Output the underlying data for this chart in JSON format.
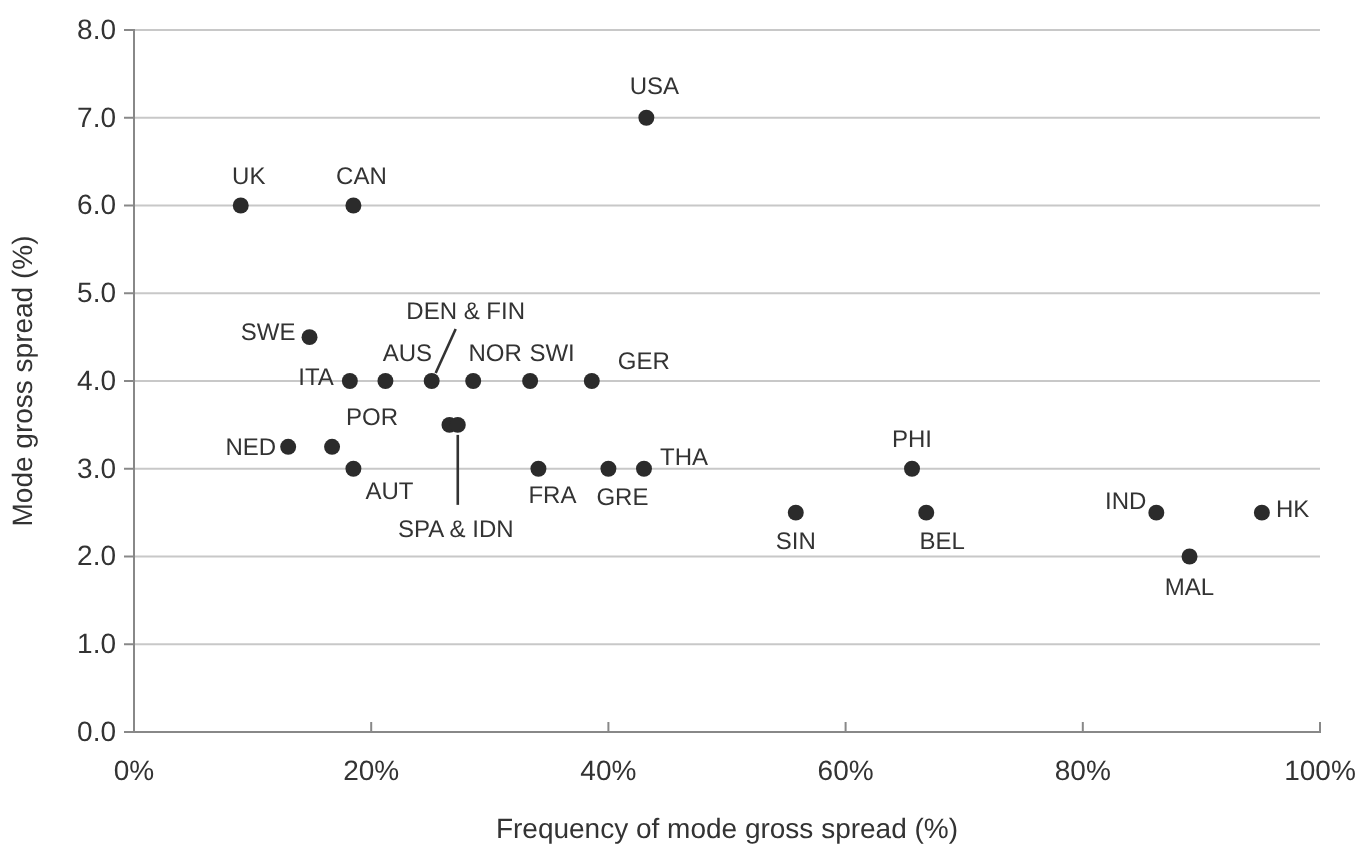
{
  "chart_data": {
    "type": "scatter",
    "xlabel": "Frequency of mode gross spread (%)",
    "ylabel": "Mode gross spread (%)",
    "x": [
      9,
      18.5,
      43.2,
      14.8,
      18.2,
      21.2,
      25.1,
      28.6,
      33.4,
      38.6,
      13,
      16.7,
      18.5,
      26.6,
      27.3,
      34.1,
      40,
      43,
      65.6,
      55.8,
      66.8,
      86.2,
      95.1,
      89
    ],
    "series": [
      {
        "color": "#2b2b2b",
        "values": [
          6,
          6,
          7,
          4.5,
          4,
          4,
          4,
          4,
          4,
          4,
          3.25,
          3.25,
          3,
          3.5,
          3.5,
          3,
          3,
          3,
          3,
          2.5,
          2.5,
          2.5,
          2.5,
          2
        ]
      }
    ],
    "xlim": [
      0,
      100
    ],
    "ylim": [
      0,
      8
    ],
    "xticks": [
      {
        "value": 0,
        "label": "0%"
      },
      {
        "value": 20,
        "label": "20%"
      },
      {
        "value": 40,
        "label": "40%"
      },
      {
        "value": 60,
        "label": "60%"
      },
      {
        "value": 80,
        "label": "80%"
      },
      {
        "value": 100,
        "label": "100%"
      }
    ],
    "yticks": [
      {
        "value": 0,
        "label": "0.0"
      },
      {
        "value": 1,
        "label": "1.0"
      },
      {
        "value": 2,
        "label": "2.0"
      },
      {
        "value": 3,
        "label": "3.0"
      },
      {
        "value": 4,
        "label": "4.0"
      },
      {
        "value": 5,
        "label": "5.0"
      },
      {
        "value": 6,
        "label": "6.0"
      },
      {
        "value": 7,
        "label": "7.0"
      },
      {
        "value": 8,
        "label": "8.0"
      }
    ],
    "grid": "y",
    "marker": "circle",
    "annotations": [
      {
        "text": "UK",
        "x": 9,
        "y": 6
      },
      {
        "text": "CAN",
        "x": 18.5,
        "y": 6
      },
      {
        "text": "USA",
        "x": 43.2,
        "y": 7
      },
      {
        "text": "SWE",
        "x": 14.8,
        "y": 4.5
      },
      {
        "text": "ITA",
        "x": 18.2,
        "y": 4
      },
      {
        "text": "AUS",
        "x": 21.2,
        "y": 4
      },
      {
        "text": "DEN & FIN",
        "x": 25.1,
        "y": 4
      },
      {
        "text": "NOR",
        "x": 28.6,
        "y": 4
      },
      {
        "text": "SWI",
        "x": 33.4,
        "y": 4
      },
      {
        "text": "GER",
        "x": 38.6,
        "y": 4
      },
      {
        "text": "NED",
        "x": 13,
        "y": 3.25
      },
      {
        "text": "POR",
        "x": 16.7,
        "y": 3.25
      },
      {
        "text": "AUT",
        "x": 18.5,
        "y": 3
      },
      {
        "text": "SPA & IDN",
        "x": 27.3,
        "y": 3.5
      },
      {
        "text": "FRA",
        "x": 34.1,
        "y": 3
      },
      {
        "text": "GRE",
        "x": 40,
        "y": 3
      },
      {
        "text": "THA",
        "x": 43,
        "y": 3
      },
      {
        "text": "PHI",
        "x": 65.6,
        "y": 3
      },
      {
        "text": "SIN",
        "x": 55.8,
        "y": 2.5
      },
      {
        "text": "BEL",
        "x": 66.8,
        "y": 2.5
      },
      {
        "text": "IND",
        "x": 86.2,
        "y": 2.5
      },
      {
        "text": "HK",
        "x": 95.1,
        "y": 2.5
      },
      {
        "text": "MAL",
        "x": 89,
        "y": 2
      }
    ]
  }
}
